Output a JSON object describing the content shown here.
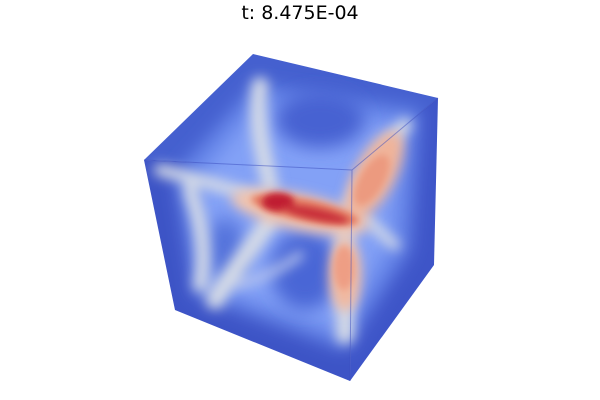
{
  "time_label": "t: 8.475E-04",
  "colormap": {
    "low": "#3b4cc0",
    "mid_low": "#8fb1fe",
    "mid": "#dddddd",
    "mid_high": "#f49a7b",
    "high": "#b40426"
  }
}
